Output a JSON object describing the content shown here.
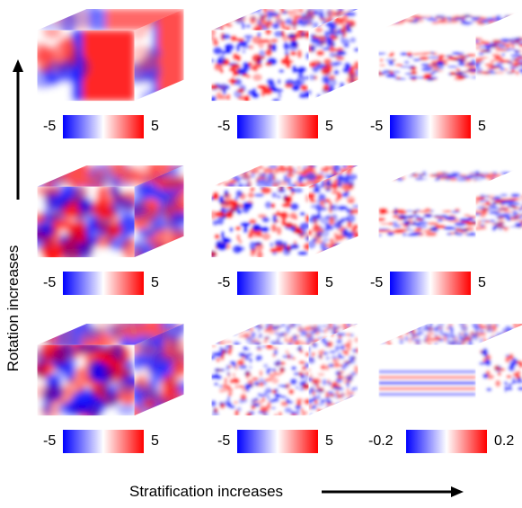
{
  "rotation_axis_label": "Rotation increases",
  "stratification_axis_label": "Stratification increases",
  "panels": [
    {
      "row": 0,
      "col": 0,
      "pattern": "large-scale",
      "scale_min": "-5",
      "scale_max": "5"
    },
    {
      "row": 0,
      "col": 1,
      "pattern": "turbulent",
      "scale_min": "-5",
      "scale_max": "5"
    },
    {
      "row": 0,
      "col": 2,
      "pattern": "thin-layer",
      "scale_min": "-5",
      "scale_max": "5"
    },
    {
      "row": 1,
      "col": 0,
      "pattern": "turbulent-large",
      "scale_min": "-5",
      "scale_max": "5"
    },
    {
      "row": 1,
      "col": 1,
      "pattern": "turbulent",
      "scale_min": "-5",
      "scale_max": "5"
    },
    {
      "row": 1,
      "col": 2,
      "pattern": "thin-layer",
      "scale_min": "-5",
      "scale_max": "5"
    },
    {
      "row": 2,
      "col": 0,
      "pattern": "turbulent-large",
      "scale_min": "-5",
      "scale_max": "5"
    },
    {
      "row": 2,
      "col": 1,
      "pattern": "turbulent-fine",
      "scale_min": "-5",
      "scale_max": "5"
    },
    {
      "row": 2,
      "col": 2,
      "pattern": "layered-waves",
      "scale_min": "-0.2",
      "scale_max": "0.2"
    }
  ],
  "colors": {
    "negative": "#0000ff",
    "zero": "#ffffff",
    "positive": "#ff0000"
  }
}
